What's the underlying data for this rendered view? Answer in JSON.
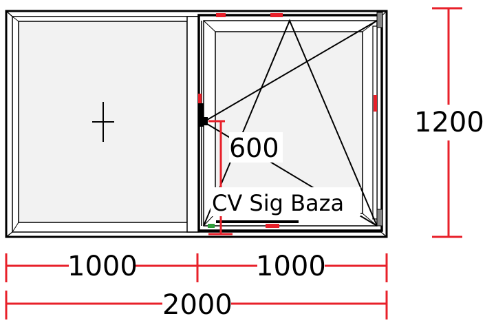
{
  "drawing": {
    "colors": {
      "frame": "#000000",
      "glass": "#f2f2f2",
      "dimension": "#e8202a",
      "hardware": "#e8202a",
      "handle": "#2e9e3a"
    },
    "dimensions": {
      "height": "1200",
      "handle_height": "600",
      "left_width": "1000",
      "right_width": "1000",
      "total_width": "2000"
    },
    "profile_label": "CV Sig Baza",
    "left_pane": {
      "type": "fixed",
      "marker": "+"
    },
    "right_pane": {
      "type": "tilt-and-turn"
    }
  }
}
